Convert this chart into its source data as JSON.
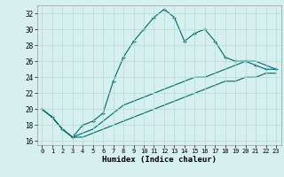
{
  "xlabel": "Humidex (Indice chaleur)",
  "background_color": "#d6f0f0",
  "grid_color": "#b8d8d8",
  "line_color": "#006666",
  "xlim": [
    -0.5,
    23.5
  ],
  "ylim": [
    15.5,
    33.0
  ],
  "xticks": [
    0,
    1,
    2,
    3,
    4,
    5,
    6,
    7,
    8,
    9,
    10,
    11,
    12,
    13,
    14,
    15,
    16,
    17,
    18,
    19,
    20,
    21,
    22,
    23
  ],
  "yticks": [
    16,
    18,
    20,
    22,
    24,
    26,
    28,
    30,
    32
  ],
  "line1_x": [
    0,
    1,
    2,
    3,
    4,
    5,
    6,
    7,
    8,
    9,
    10,
    11,
    12,
    13,
    14,
    15,
    16,
    17,
    18,
    19,
    20,
    21,
    22,
    23
  ],
  "line1_y": [
    20.0,
    19.0,
    17.5,
    16.5,
    18.0,
    18.5,
    19.5,
    23.5,
    26.5,
    28.5,
    30.0,
    31.5,
    32.5,
    31.5,
    28.5,
    29.5,
    30.0,
    28.5,
    26.5,
    26.0,
    26.0,
    25.5,
    25.0,
    25.0
  ],
  "line2_x": [
    0,
    1,
    2,
    3,
    4,
    5,
    6,
    7,
    8,
    9,
    10,
    11,
    12,
    13,
    14,
    15,
    16,
    17,
    18,
    19,
    20,
    21,
    22,
    23
  ],
  "line2_y": [
    20.0,
    19.0,
    17.5,
    16.5,
    17.0,
    17.5,
    18.5,
    19.5,
    20.5,
    21.0,
    21.5,
    22.0,
    22.5,
    23.0,
    23.5,
    24.0,
    24.0,
    24.5,
    25.0,
    25.5,
    26.0,
    26.0,
    25.5,
    25.0
  ],
  "line3_x": [
    0,
    1,
    2,
    3,
    4,
    5,
    6,
    7,
    8,
    9,
    10,
    11,
    12,
    13,
    14,
    15,
    16,
    17,
    18,
    19,
    20,
    21,
    22,
    23
  ],
  "line3_y": [
    20.0,
    19.0,
    17.5,
    16.5,
    16.5,
    17.0,
    17.5,
    18.0,
    18.5,
    19.0,
    19.5,
    20.0,
    20.5,
    21.0,
    21.5,
    22.0,
    22.5,
    23.0,
    23.5,
    23.5,
    24.0,
    24.0,
    24.5,
    24.5
  ]
}
